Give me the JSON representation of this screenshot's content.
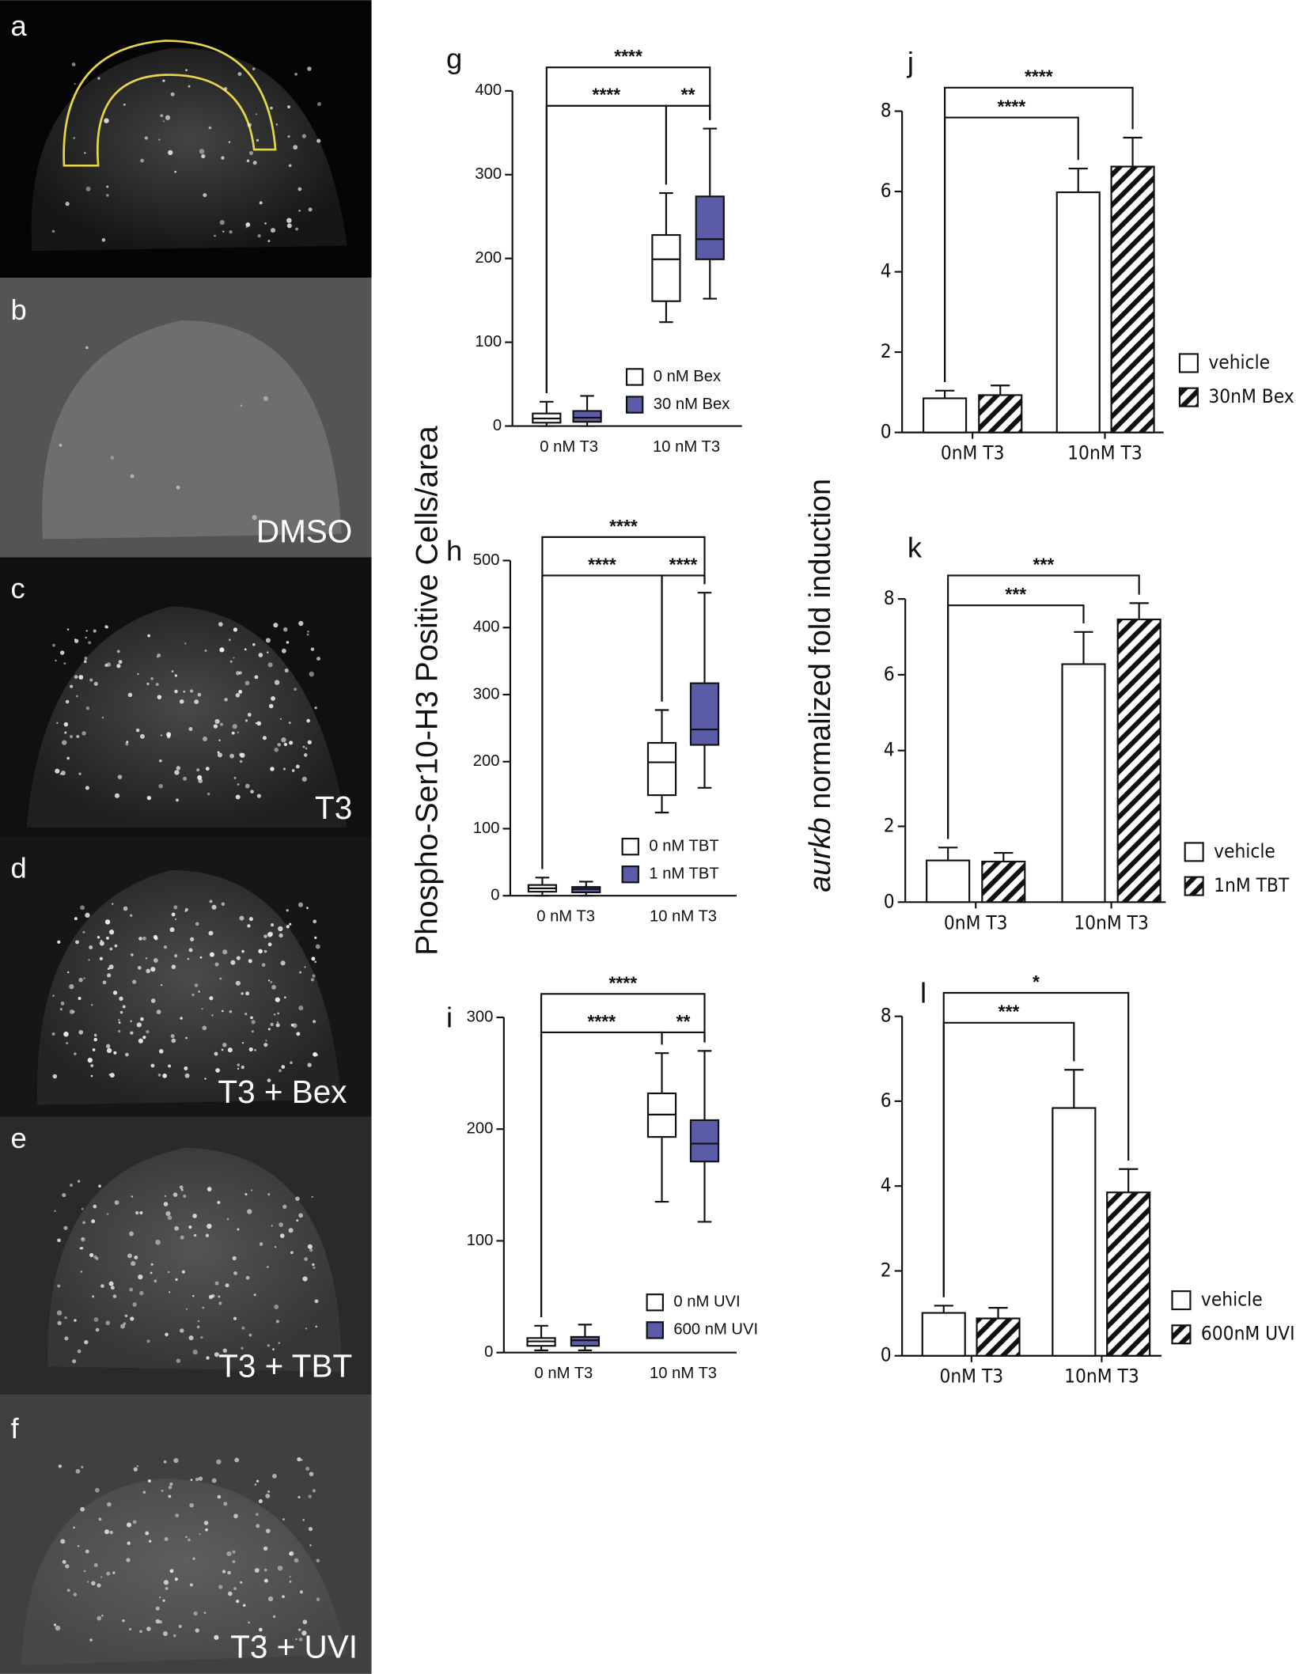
{
  "image_panels": [
    {
      "label": "a"
    },
    {
      "label": "b",
      "caption": "DMSO"
    },
    {
      "label": "c",
      "caption": "T3"
    },
    {
      "label": "d",
      "caption": "T3 + Bex"
    },
    {
      "label": "e",
      "caption": "T3 + TBT"
    },
    {
      "label": "f",
      "caption": "T3 + UVI"
    }
  ],
  "shared_axis_labels": {
    "left": "Phospho-Ser10-H3 Positive Cells/area",
    "right_gene": "aurkb",
    "right": "normalized fold induction"
  },
  "chart_data": [
    {
      "type": "box",
      "panel": "g",
      "categories": [
        "0 nM T3",
        "10 nM T3"
      ],
      "series": [
        {
          "name": "0 nM Bex",
          "color": "#ffffff",
          "min": [
            0,
            124
          ],
          "q1": [
            4,
            149
          ],
          "median": [
            9,
            199
          ],
          "q3": [
            15,
            228
          ],
          "max": [
            29,
            278
          ]
        },
        {
          "name": "30 nM Bex",
          "color": "#5b5ca8",
          "min": [
            0,
            152
          ],
          "q1": [
            5,
            199
          ],
          "median": [
            10,
            223
          ],
          "q3": [
            18,
            274
          ],
          "max": [
            36,
            355
          ]
        }
      ],
      "ylim": [
        0,
        400
      ],
      "yticks": [
        0,
        100,
        200,
        300,
        400
      ],
      "brackets": [
        {
          "text": "****",
          "between": [
            0,
            2
          ]
        },
        {
          "text": "**",
          "between": [
            2,
            3
          ]
        },
        {
          "text": "****",
          "between": [
            0,
            3
          ]
        }
      ]
    },
    {
      "type": "box",
      "panel": "h",
      "categories": [
        "0 nM T3",
        "10 nM T3"
      ],
      "series": [
        {
          "name": "0 nM TBT",
          "color": "#ffffff",
          "min": [
            0,
            124
          ],
          "q1": [
            6,
            150
          ],
          "median": [
            11,
            199
          ],
          "q3": [
            16,
            228
          ],
          "max": [
            27,
            277
          ]
        },
        {
          "name": "1 nM TBT",
          "color": "#5b5ca8",
          "min": [
            0,
            161
          ],
          "q1": [
            5,
            225
          ],
          "median": [
            10,
            248
          ],
          "q3": [
            13,
            317
          ],
          "max": [
            21,
            452
          ]
        }
      ],
      "ylim": [
        0,
        500
      ],
      "yticks": [
        0,
        100,
        200,
        300,
        400,
        500
      ],
      "brackets": [
        {
          "text": "****",
          "between": [
            0,
            2
          ]
        },
        {
          "text": "****",
          "between": [
            2,
            3
          ]
        },
        {
          "text": "****",
          "between": [
            0,
            3
          ]
        }
      ]
    },
    {
      "type": "box",
      "panel": "i",
      "categories": [
        "0 nM T3",
        "10 nM T3"
      ],
      "series": [
        {
          "name": "0 nM UVI",
          "color": "#ffffff",
          "min": [
            2,
            135
          ],
          "q1": [
            6,
            193
          ],
          "median": [
            10,
            213
          ],
          "q3": [
            13,
            232
          ],
          "max": [
            24,
            268
          ]
        },
        {
          "name": "600 nM UVI",
          "color": "#5b5ca8",
          "min": [
            2,
            117
          ],
          "q1": [
            6,
            171
          ],
          "median": [
            11,
            187
          ],
          "q3": [
            14,
            208
          ],
          "max": [
            25,
            270
          ]
        }
      ],
      "ylim": [
        0,
        300
      ],
      "yticks": [
        0,
        100,
        200,
        300
      ],
      "brackets": [
        {
          "text": "****",
          "between": [
            0,
            2
          ]
        },
        {
          "text": "**",
          "between": [
            2,
            3
          ]
        },
        {
          "text": "****",
          "between": [
            0,
            3
          ]
        }
      ]
    },
    {
      "type": "bar",
      "panel": "j",
      "categories": [
        "0nM T3",
        "10nM T3"
      ],
      "series": [
        {
          "name": "vehicle",
          "pattern": "solid",
          "values": [
            0.85,
            5.98
          ],
          "errors": [
            0.19,
            0.59
          ]
        },
        {
          "name": "30nM Bex",
          "pattern": "hatch",
          "values": [
            0.93,
            6.62
          ],
          "errors": [
            0.24,
            0.72
          ]
        }
      ],
      "ylim": [
        0,
        8
      ],
      "yticks": [
        0,
        2,
        4,
        6,
        8
      ],
      "brackets": [
        {
          "text": "****",
          "between": [
            0,
            2
          ]
        },
        {
          "text": "****",
          "between": [
            0,
            3
          ]
        }
      ]
    },
    {
      "type": "bar",
      "panel": "k",
      "categories": [
        "0nM T3",
        "10nM T3"
      ],
      "series": [
        {
          "name": "vehicle",
          "pattern": "solid",
          "values": [
            1.1,
            6.28
          ],
          "errors": [
            0.34,
            0.85
          ]
        },
        {
          "name": "1nM TBT",
          "pattern": "hatch",
          "values": [
            1.07,
            7.46
          ],
          "errors": [
            0.23,
            0.43
          ]
        }
      ],
      "ylim": [
        0,
        8
      ],
      "yticks": [
        0,
        2,
        4,
        6,
        8
      ],
      "brackets": [
        {
          "text": "***",
          "between": [
            0,
            2
          ]
        },
        {
          "text": "***",
          "between": [
            0,
            3
          ]
        }
      ]
    },
    {
      "type": "bar",
      "panel": "l",
      "categories": [
        "0nM T3",
        "10nM T3"
      ],
      "series": [
        {
          "name": "vehicle",
          "pattern": "solid",
          "values": [
            1.01,
            5.84
          ],
          "errors": [
            0.17,
            0.9
          ]
        },
        {
          "name": "600nM UVI",
          "pattern": "hatch",
          "values": [
            0.88,
            3.85
          ],
          "errors": [
            0.25,
            0.55
          ]
        }
      ],
      "ylim": [
        0,
        8
      ],
      "yticks": [
        0,
        2,
        4,
        6,
        8
      ],
      "brackets": [
        {
          "text": "***",
          "between": [
            0,
            2
          ]
        },
        {
          "text": "*",
          "between": [
            0,
            3
          ]
        }
      ]
    }
  ]
}
